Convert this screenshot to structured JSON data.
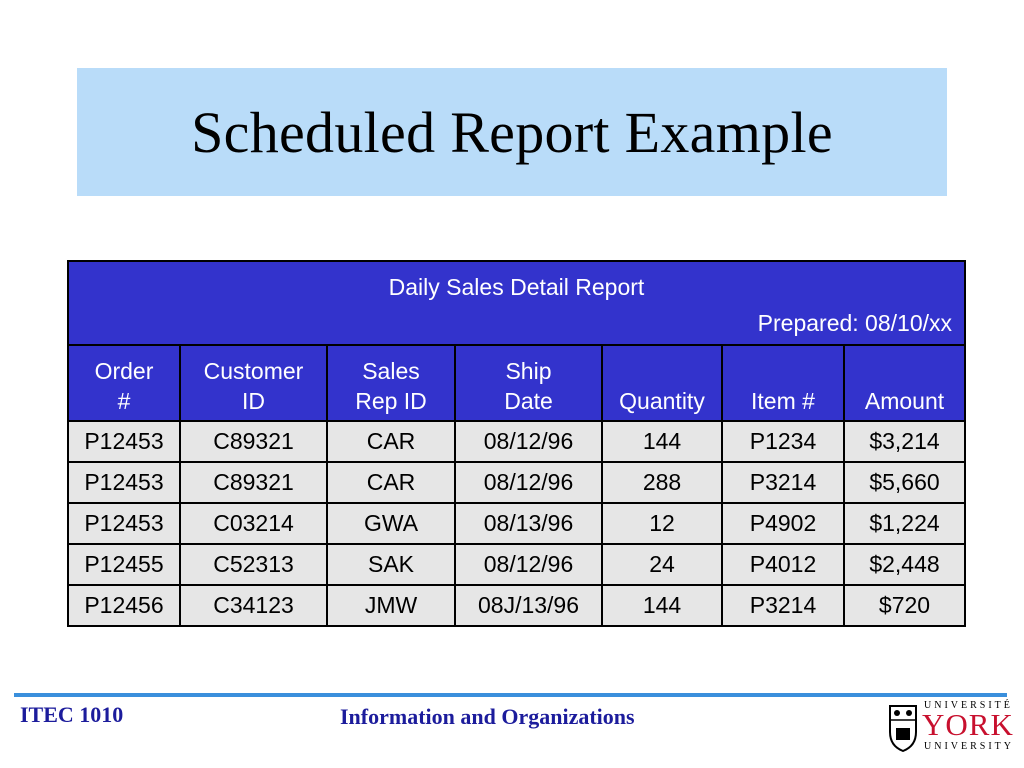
{
  "slide": {
    "title": "Scheduled Report Example"
  },
  "report": {
    "title": "Daily Sales Detail Report",
    "prepared": "Prepared: 08/10/xx",
    "columns": [
      {
        "line1": "Order",
        "line2": "#"
      },
      {
        "line1": "Customer",
        "line2": "ID"
      },
      {
        "line1": "Sales",
        "line2": "Rep ID"
      },
      {
        "line1": "Ship",
        "line2": "Date"
      },
      {
        "line1": "",
        "line2": "Quantity"
      },
      {
        "line1": "",
        "line2": "Item #"
      },
      {
        "line1": "",
        "line2": "Amount"
      }
    ],
    "rows": [
      [
        "P12453",
        "C89321",
        "CAR",
        "08/12/96",
        "144",
        "P1234",
        "$3,214"
      ],
      [
        "P12453",
        "C89321",
        "CAR",
        "08/12/96",
        "288",
        "P3214",
        "$5,660"
      ],
      [
        "P12453",
        "C03214",
        "GWA",
        "08/13/96",
        "12",
        "P4902",
        "$1,224"
      ],
      [
        "P12455",
        "C52313",
        "SAK",
        "08/12/96",
        "24",
        "P4012",
        "$2,448"
      ],
      [
        "P12456",
        "C34123",
        "JMW",
        "08J/13/96",
        "144",
        "P3214",
        "$720"
      ]
    ]
  },
  "footer": {
    "course": "ITEC 1010",
    "subtitle": "Information and Organizations",
    "logo_top": "UNIVERSITÉ",
    "logo_main": "YORK",
    "logo_bottom": "UNIVERSITY",
    "accent_color": "#1c1c9c",
    "line_color": "#3a8fdc",
    "header_fill": "#3333cc"
  }
}
